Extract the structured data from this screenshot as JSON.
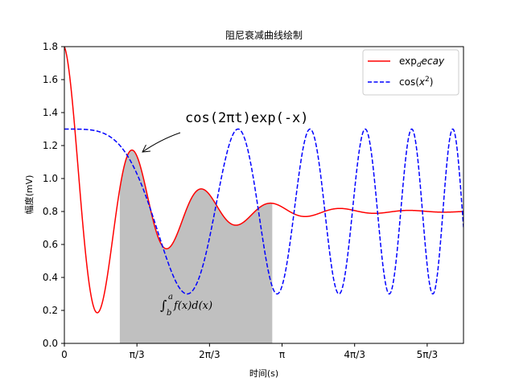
{
  "chart_data": {
    "type": "line",
    "title": "阻尼衰减曲线绘制",
    "xlabel": "时间(s)",
    "ylabel": "幅度(mV)",
    "xlim": [
      0,
      5.76
    ],
    "ylim": [
      0,
      1.8
    ],
    "xticks": [
      {
        "value": 0,
        "label": "0"
      },
      {
        "value": 1.0472,
        "label": "π/3"
      },
      {
        "value": 2.0944,
        "label": "2π/3"
      },
      {
        "value": 3.1416,
        "label": "π"
      },
      {
        "value": 4.1888,
        "label": "4π/3"
      },
      {
        "value": 5.236,
        "label": "5π/3"
      }
    ],
    "yticks": [
      {
        "value": 0.0,
        "label": "0.0"
      },
      {
        "value": 0.2,
        "label": "0.2"
      },
      {
        "value": 0.4,
        "label": "0.4"
      },
      {
        "value": 0.6,
        "label": "0.6"
      },
      {
        "value": 0.8,
        "label": "0.8"
      },
      {
        "value": 1.0,
        "label": "1.0"
      },
      {
        "value": 1.2,
        "label": "1.2"
      },
      {
        "value": 1.4,
        "label": "1.4"
      },
      {
        "value": 1.6,
        "label": "1.6"
      },
      {
        "value": 1.8,
        "label": "1.8"
      }
    ],
    "series": [
      {
        "name": "exp_decay",
        "legend_main": "exp",
        "legend_sub": "d",
        "legend_tail": "ecay",
        "color": "#ff0000",
        "style": "solid",
        "formula": "cos(2*pi*x)*exp(-x)+0.8"
      },
      {
        "name": "cos(x^2)",
        "legend_main": "cos(",
        "legend_var": "x",
        "legend_sup": "2",
        "legend_end": ")",
        "color": "#0000ff",
        "style": "dashed",
        "formula": "cos(x*x)/2+0.8"
      }
    ],
    "fill_region": {
      "x_from": 0.8,
      "x_to": 3.0,
      "color": "#c0c0c0",
      "under_series": "exp_decay"
    },
    "annotations": {
      "arrow_text": "cos(2πt)exp(-x)",
      "arrow_target": {
        "x": 1.1,
        "y": 1.1369
      },
      "integral_label": "∫",
      "integral_upper": "a",
      "integral_lower": "b",
      "integral_body": "f(x)d(x)",
      "integral_at": {
        "x": 1.4,
        "y": 0.25
      }
    },
    "legend_placement": "top-right",
    "grid": false
  }
}
